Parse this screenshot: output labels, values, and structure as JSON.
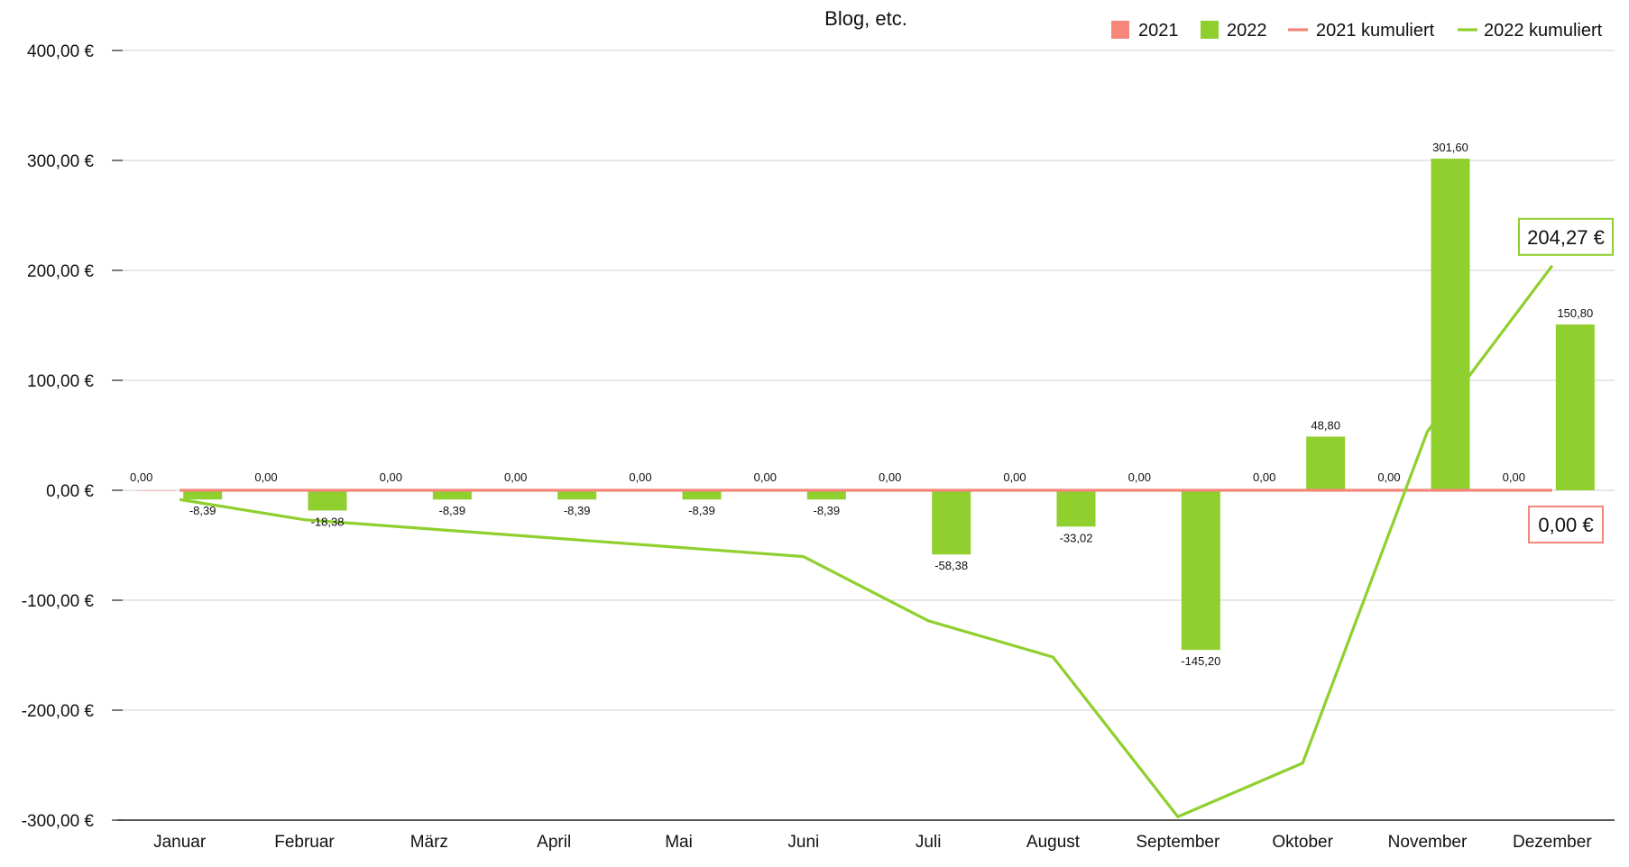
{
  "chart_data": {
    "type": "bar",
    "title": "Blog, etc.",
    "xlabel": "",
    "ylabel": "",
    "ylim": [
      -300,
      400
    ],
    "yticks": [
      400,
      300,
      200,
      100,
      0,
      -100,
      -200,
      -300
    ],
    "ytick_labels": [
      "400,00 €",
      "300,00 €",
      "200,00 €",
      "100,00 €",
      "0,00 €",
      "-100,00 €",
      "-200,00 €",
      "-300,00 €"
    ],
    "categories": [
      "Januar",
      "Februar",
      "März",
      "April",
      "Mai",
      "Juni",
      "Juli",
      "August",
      "September",
      "Oktober",
      "November",
      "Dezember"
    ],
    "legend_position": "top-right",
    "series": [
      {
        "name": "2021",
        "kind": "bar",
        "color": "#f5877a",
        "values": [
          0,
          0,
          0,
          0,
          0,
          0,
          0,
          0,
          0,
          0,
          0,
          0
        ],
        "labels": [
          "0,00",
          "0,00",
          "0,00",
          "0,00",
          "0,00",
          "0,00",
          "0,00",
          "0,00",
          "0,00",
          "0,00",
          "0,00",
          "0,00"
        ]
      },
      {
        "name": "2022",
        "kind": "bar",
        "color": "#8fcf2e",
        "values": [
          -8.39,
          -18.38,
          -8.39,
          -8.39,
          -8.39,
          -8.39,
          -58.38,
          -33.02,
          -145.2,
          48.8,
          301.6,
          150.8
        ],
        "labels": [
          "-8,39",
          "-18,38",
          "-8,39",
          "-8,39",
          "-8,39",
          "-8,39",
          "-58,38",
          "-33,02",
          "-145,20",
          "48,80",
          "301,60",
          "150,80"
        ]
      },
      {
        "name": "2021 kumuliert",
        "kind": "line",
        "color": "#f5877a",
        "values": [
          0,
          0,
          0,
          0,
          0,
          0,
          0,
          0,
          0,
          0,
          0,
          0
        ],
        "end_label": "0,00 €"
      },
      {
        "name": "2022 kumuliert",
        "kind": "line",
        "color": "#8fcf2e",
        "values": [
          -8.39,
          -26.77,
          -35.16,
          -43.55,
          -51.94,
          -60.33,
          -118.71,
          -151.73,
          -296.93,
          -248.13,
          53.47,
          204.27
        ],
        "end_label": "204,27 €"
      }
    ]
  }
}
